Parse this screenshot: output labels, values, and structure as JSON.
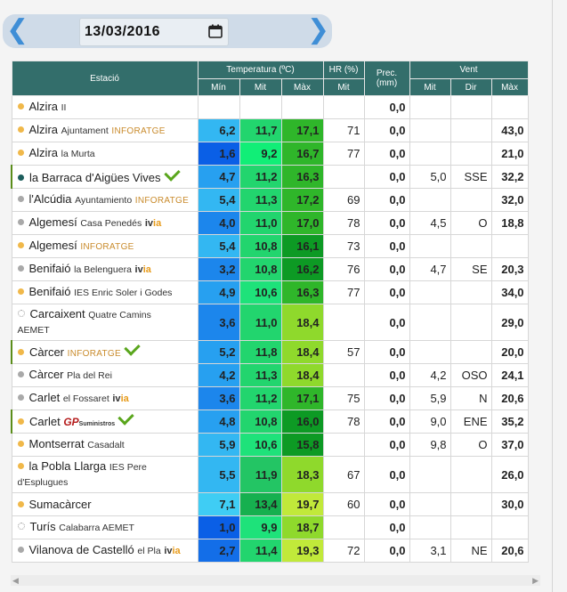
{
  "nav": {
    "prev_icon": "chevron-left-icon",
    "next_icon": "chevron-right-icon",
    "date_value": "13/03/2016",
    "calendar_icon": "calendar-icon"
  },
  "header": {
    "station": "Estació",
    "temperature": "Temperatura (ºC)",
    "hr": "HR (%)",
    "prec": "Prec.",
    "prec_unit": "(mm)",
    "wind": "Vent",
    "min": "Mín",
    "mit": "Mit",
    "max": "Màx",
    "hr_mit": "Mit",
    "w_mit": "Mit",
    "w_dir": "Dir",
    "w_max": "Màx"
  },
  "rows": [
    {
      "name": "Alzira",
      "sub": "II",
      "org": "",
      "brand": "",
      "dot": "orange",
      "check": false,
      "tall": false,
      "min": "",
      "mit": "",
      "max": "",
      "hr": "",
      "prec": "0,0",
      "wmit": "",
      "dir": "",
      "wmax": ""
    },
    {
      "name": "Alzira",
      "sub": "Ajuntament",
      "org": "INFORATGE",
      "brand": "",
      "dot": "orange",
      "check": false,
      "tall": false,
      "min": "6,2",
      "mit": "11,7",
      "max": "17,1",
      "hr": "71",
      "prec": "0,0",
      "wmit": "",
      "dir": "",
      "wmax": "43,0"
    },
    {
      "name": "Alzira",
      "sub": "la Murta",
      "org": "",
      "brand": "",
      "dot": "orange",
      "check": false,
      "tall": false,
      "min": "1,6",
      "mit": "9,2",
      "max": "16,7",
      "hr": "77",
      "prec": "0,0",
      "wmit": "",
      "dir": "",
      "wmax": "21,0"
    },
    {
      "name": "la Barraca d'Aigües Vives",
      "sub": "",
      "org": "",
      "brand": "",
      "dot": "teal",
      "check": true,
      "tall": false,
      "hl": true,
      "min": "4,7",
      "mit": "11,2",
      "max": "16,3",
      "hr": "",
      "prec": "0,0",
      "wmit": "5,0",
      "dir": "SSE",
      "wmax": "32,2"
    },
    {
      "name": "l'Alcúdia",
      "sub": "Ayuntamiento",
      "org": "INFORATGE",
      "brand": "",
      "dot": "grey",
      "check": false,
      "tall": false,
      "min": "5,4",
      "mit": "11,3",
      "max": "17,2",
      "hr": "69",
      "prec": "0,0",
      "wmit": "",
      "dir": "",
      "wmax": "32,0"
    },
    {
      "name": "Algemesí",
      "sub": "Casa Penedés",
      "org": "",
      "brand": "ivia",
      "dot": "grey",
      "check": false,
      "tall": false,
      "min": "4,0",
      "mit": "11,0",
      "max": "17,0",
      "hr": "78",
      "prec": "0,0",
      "wmit": "4,5",
      "dir": "O",
      "wmax": "18,8"
    },
    {
      "name": "Algemesí",
      "sub": "",
      "org": "INFORATGE",
      "brand": "",
      "dot": "orange",
      "check": false,
      "tall": false,
      "min": "5,4",
      "mit": "10,8",
      "max": "16,1",
      "hr": "73",
      "prec": "0,0",
      "wmit": "",
      "dir": "",
      "wmax": ""
    },
    {
      "name": "Benifaió",
      "sub": "la Belenguera",
      "org": "",
      "brand": "ivia",
      "dot": "grey",
      "check": false,
      "tall": false,
      "min": "3,2",
      "mit": "10,8",
      "max": "16,2",
      "hr": "76",
      "prec": "0,0",
      "wmit": "4,7",
      "dir": "SE",
      "wmax": "20,3"
    },
    {
      "name": "Benifaió",
      "sub": "IES Enric Soler i Godes",
      "org": "",
      "brand": "",
      "dot": "orange",
      "check": false,
      "tall": false,
      "min": "4,9",
      "mit": "10,6",
      "max": "16,3",
      "hr": "77",
      "prec": "0,0",
      "wmit": "",
      "dir": "",
      "wmax": "34,0"
    },
    {
      "name": "Carcaixent",
      "sub": "Quatre Camins",
      "sub2": "AEMET",
      "org": "",
      "brand": "",
      "dot": "dotted",
      "check": false,
      "tall": true,
      "min": "3,6",
      "mit": "11,0",
      "max": "18,4",
      "hr": "",
      "prec": "0,0",
      "wmit": "",
      "dir": "",
      "wmax": "29,0"
    },
    {
      "name": "Càrcer",
      "sub": "",
      "org": "INFORATGE",
      "brand": "",
      "dot": "orange",
      "check": true,
      "tall": false,
      "hl": true,
      "min": "5,2",
      "mit": "11,8",
      "max": "18,4",
      "hr": "57",
      "prec": "0,0",
      "wmit": "",
      "dir": "",
      "wmax": "20,0"
    },
    {
      "name": "Càrcer",
      "sub": "Pla del Rei",
      "org": "",
      "brand": "",
      "dot": "grey",
      "check": false,
      "tall": false,
      "min": "4,2",
      "mit": "11,3",
      "max": "18,4",
      "hr": "",
      "prec": "0,0",
      "wmit": "4,2",
      "dir": "OSO",
      "wmax": "24,1"
    },
    {
      "name": "Carlet",
      "sub": "el Fossaret",
      "org": "",
      "brand": "ivia",
      "dot": "grey",
      "check": false,
      "tall": false,
      "min": "3,6",
      "mit": "11,2",
      "max": "17,1",
      "hr": "75",
      "prec": "0,0",
      "wmit": "5,9",
      "dir": "N",
      "wmax": "20,6"
    },
    {
      "name": "Carlet",
      "sub": "",
      "org": "",
      "brand": "GP",
      "brand2": "Suministros",
      "dot": "orange",
      "check": true,
      "tall": false,
      "hl": true,
      "min": "4,8",
      "mit": "10,8",
      "max": "16,0",
      "hr": "78",
      "prec": "0,0",
      "wmit": "9,0",
      "dir": "ENE",
      "wmax": "35,2"
    },
    {
      "name": "Montserrat",
      "sub": "Casadalt",
      "org": "",
      "brand": "",
      "dot": "orange",
      "check": false,
      "tall": false,
      "min": "5,9",
      "mit": "10,6",
      "max": "15,8",
      "hr": "",
      "prec": "0,0",
      "wmit": "9,8",
      "dir": "O",
      "wmax": "37,0"
    },
    {
      "name": "la Pobla Llarga",
      "sub": "IES Pere",
      "sub2": "d'Esplugues",
      "org": "",
      "brand": "",
      "dot": "orange",
      "check": false,
      "tall": true,
      "min": "5,5",
      "mit": "11,9",
      "max": "18,3",
      "hr": "67",
      "prec": "0,0",
      "wmit": "",
      "dir": "",
      "wmax": "26,0"
    },
    {
      "name": "Sumacàrcer",
      "sub": "",
      "org": "",
      "brand": "",
      "dot": "orange",
      "check": false,
      "tall": false,
      "min": "7,1",
      "mit": "13,4",
      "max": "19,7",
      "hr": "60",
      "prec": "0,0",
      "wmit": "",
      "dir": "",
      "wmax": "30,0"
    },
    {
      "name": "Turís",
      "sub": "Calabarra AEMET",
      "org": "",
      "brand": "",
      "dot": "dotted",
      "check": false,
      "tall": false,
      "min": "1,0",
      "mit": "9,9",
      "max": "18,7",
      "hr": "",
      "prec": "0,0",
      "wmit": "",
      "dir": "",
      "wmax": ""
    },
    {
      "name": "Vilanova de Castelló",
      "sub": "el Pla",
      "org": "",
      "brand": "ivia",
      "dot": "grey",
      "check": false,
      "tall": false,
      "min": "2,7",
      "mit": "11,4",
      "max": "19,3",
      "hr": "72",
      "prec": "0,0",
      "wmit": "3,1",
      "dir": "NE",
      "wmax": "20,6"
    }
  ],
  "colors": {
    "min": [
      "#0a5fe6",
      "#136ee8",
      "#1c86ec",
      "#27a0f0",
      "#33b7f2",
      "#3fcdf4"
    ],
    "mit": [
      "#11ee77",
      "#1ee27a",
      "#22d56e",
      "#23c564",
      "#16b04f"
    ],
    "max": [
      "#0d9a24",
      "#2fb62a",
      "#52c92a",
      "#8fd92c",
      "#c1e93a"
    ]
  }
}
